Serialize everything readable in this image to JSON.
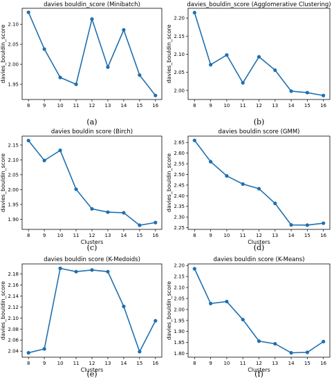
{
  "style": {
    "line_color": "#1f6faf"
  },
  "chart_data": [
    {
      "type": "line",
      "title": "davies bouldin_score (Minibatch)",
      "xlabel": "Clusters",
      "ylabel": "davies_bouldin_score",
      "caption": "(a)",
      "x": [
        8,
        9,
        10,
        11,
        12,
        13,
        14,
        15,
        16
      ],
      "values": [
        2.13,
        2.038,
        1.967,
        1.95,
        2.113,
        1.993,
        2.086,
        1.973,
        1.922
      ],
      "ylim": [
        1.912,
        2.14
      ],
      "yticks": [
        1.95,
        2.0,
        2.05,
        2.1
      ],
      "ytick_labels": [
        "1.95",
        "2.00",
        "2.05",
        "2.10"
      ],
      "show_xlabel": false,
      "grid": false
    },
    {
      "type": "line",
      "title": "davies_bouldin_score (Agglomerative Clustering)",
      "xlabel": "Clusters",
      "ylabel": "davies_bouldin_score",
      "caption": "(b)",
      "x": [
        8,
        9,
        10,
        11,
        12,
        13,
        14,
        15,
        16
      ],
      "values": [
        2.215,
        2.071,
        2.098,
        2.021,
        2.093,
        2.056,
        1.998,
        1.994,
        1.986
      ],
      "ylim": [
        1.975,
        2.227
      ],
      "yticks": [
        2.0,
        2.05,
        2.1,
        2.15,
        2.2
      ],
      "ytick_labels": [
        "2.00",
        "2.05",
        "2.10",
        "2.15",
        "2.20"
      ],
      "show_xlabel": false,
      "grid": false
    },
    {
      "type": "line",
      "title": "davies bouldin score (Birch)",
      "xlabel": "Clusters",
      "ylabel": "davies_bouldin_score",
      "caption": "(c)",
      "x": [
        8,
        9,
        10,
        11,
        12,
        13,
        14,
        15,
        16
      ],
      "values": [
        2.165,
        2.098,
        2.132,
        2.001,
        1.935,
        1.924,
        1.922,
        1.88,
        1.889
      ],
      "ylim": [
        1.866,
        2.18
      ],
      "yticks": [
        1.9,
        1.95,
        2.0,
        2.05,
        2.1,
        2.15
      ],
      "ytick_labels": [
        "1.90",
        "1.95",
        "2.00",
        "2.05",
        "2.10",
        "2.15"
      ],
      "show_xlabel": true,
      "grid": false
    },
    {
      "type": "line",
      "title": "davies bouldin score (GMM)",
      "xlabel": "Clusters",
      "ylabel": "davies_bouldin_score",
      "caption": "(d)",
      "x": [
        8,
        9,
        10,
        11,
        12,
        13,
        14,
        15,
        16
      ],
      "values": [
        2.66,
        2.56,
        2.493,
        2.455,
        2.433,
        2.364,
        2.263,
        2.262,
        2.271
      ],
      "ylim": [
        2.242,
        2.68
      ],
      "yticks": [
        2.25,
        2.3,
        2.35,
        2.4,
        2.45,
        2.5,
        2.55,
        2.6,
        2.65
      ],
      "ytick_labels": [
        "2.25",
        "2.30",
        "2.35",
        "2.40",
        "2.45",
        "2.50",
        "2.55",
        "2.60",
        "2.65"
      ],
      "show_xlabel": true,
      "grid": false
    },
    {
      "type": "line",
      "title": "davies bouldin score (K-Medoids)",
      "xlabel": "Clusters",
      "ylabel": "davies_bouldin_score",
      "caption": "(e)",
      "x": [
        8,
        9,
        10,
        11,
        12,
        13,
        14,
        15,
        16
      ],
      "values": [
        2.037,
        2.044,
        2.19,
        2.184,
        2.187,
        2.184,
        2.121,
        2.039,
        2.095
      ],
      "ylim": [
        2.029,
        2.198
      ],
      "yticks": [
        2.04,
        2.06,
        2.08,
        2.1,
        2.12,
        2.14,
        2.16,
        2.18
      ],
      "ytick_labels": [
        "2.04",
        "2.06",
        "2.08",
        "2.10",
        "2.12",
        "2.14",
        "2.16",
        "2.18"
      ],
      "show_xlabel": true,
      "grid": false
    },
    {
      "type": "line",
      "title": "davies bouldin score (K-Means)",
      "xlabel": "Clusters",
      "ylabel": "davies_bouldin_score",
      "caption": "(f)",
      "x": [
        8,
        9,
        10,
        11,
        12,
        13,
        14,
        15,
        16
      ],
      "values": [
        2.185,
        2.027,
        2.036,
        1.954,
        1.856,
        1.844,
        1.803,
        1.805,
        1.854
      ],
      "ylim": [
        1.783,
        2.207
      ],
      "yticks": [
        1.8,
        1.85,
        1.9,
        1.95,
        2.0,
        2.05,
        2.1,
        2.15,
        2.2
      ],
      "ytick_labels": [
        "1.80",
        "1.85",
        "1.90",
        "1.95",
        "2.00",
        "2.05",
        "2.10",
        "2.15",
        "2.20"
      ],
      "show_xlabel": true,
      "grid": false
    }
  ]
}
